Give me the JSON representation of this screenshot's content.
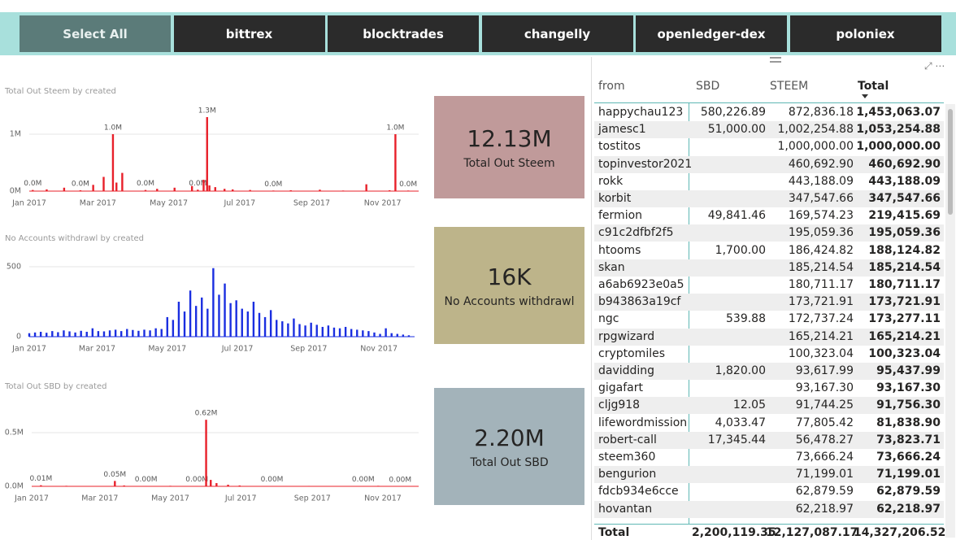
{
  "buttons": [
    "Select All",
    "bittrex",
    "blocktrades",
    "changelly",
    "openledger-dex",
    "poloniex"
  ],
  "chart_data": [
    {
      "type": "bar",
      "title": "Total Out Steem by created",
      "color": "#e8202a",
      "grid": true,
      "x": [
        3,
        15,
        30,
        44,
        55,
        64,
        72,
        75,
        80,
        100,
        110,
        125,
        140,
        145,
        150,
        153,
        155,
        160,
        168,
        175,
        190,
        210,
        225,
        250,
        270,
        290,
        310,
        315,
        326
      ],
      "values": [
        20000,
        30000,
        60000,
        15000,
        110000,
        250000,
        1000000,
        150000,
        320000,
        20000,
        40000,
        60000,
        90000,
        25000,
        200000,
        1300000,
        100000,
        70000,
        40000,
        30000,
        20000,
        10000,
        15000,
        25000,
        10000,
        120000,
        15000,
        1000000,
        10000
      ],
      "value_labels": [
        "0.0M",
        null,
        null,
        "0.0M",
        null,
        null,
        "1.0M",
        null,
        null,
        "0.0M",
        null,
        null,
        null,
        "0.0M",
        null,
        "1.3M",
        null,
        null,
        null,
        null,
        null,
        "0.0M",
        null,
        null,
        null,
        null,
        null,
        "1.0M",
        "0.0M"
      ],
      "xlim": [
        0,
        335
      ],
      "xticks": [
        {
          "value": 0,
          "label": "Jan 2017"
        },
        {
          "value": 59,
          "label": "Mar 2017"
        },
        {
          "value": 120,
          "label": "May 2017"
        },
        {
          "value": 181,
          "label": "Jul 2017"
        },
        {
          "value": 243,
          "label": "Sep 2017"
        },
        {
          "value": 304,
          "label": "Nov 2017"
        }
      ],
      "ylim": [
        0,
        1400000
      ],
      "yticks": [
        {
          "value": 0,
          "label": "0M"
        },
        {
          "value": 1000000,
          "label": "1M"
        }
      ]
    },
    {
      "type": "bar",
      "title": "No Accounts withdrawl by created",
      "color": "#1a2ee0",
      "grid": true,
      "x": [
        0,
        5,
        10,
        15,
        20,
        25,
        30,
        35,
        40,
        45,
        50,
        55,
        60,
        65,
        70,
        75,
        80,
        85,
        90,
        95,
        100,
        105,
        110,
        115,
        120,
        125,
        130,
        135,
        140,
        145,
        150,
        155,
        160,
        165,
        170,
        175,
        180,
        185,
        190,
        195,
        200,
        205,
        210,
        215,
        220,
        225,
        230,
        235,
        240,
        245,
        250,
        255,
        260,
        265,
        270,
        275,
        280,
        285,
        290,
        295,
        300,
        305,
        310,
        315,
        320,
        325,
        330
      ],
      "values": [
        25,
        30,
        35,
        28,
        40,
        32,
        45,
        38,
        30,
        42,
        35,
        60,
        40,
        38,
        45,
        50,
        40,
        55,
        48,
        42,
        50,
        45,
        60,
        55,
        140,
        120,
        250,
        180,
        330,
        220,
        280,
        200,
        490,
        300,
        380,
        240,
        260,
        200,
        180,
        250,
        170,
        140,
        190,
        120,
        110,
        95,
        130,
        90,
        80,
        100,
        85,
        70,
        80,
        65,
        60,
        70,
        55,
        50,
        45,
        40,
        30,
        20,
        60,
        25,
        20,
        15,
        10
      ],
      "xlim": [
        0,
        335
      ],
      "xticks": [
        {
          "value": 0,
          "label": "Jan 2017"
        },
        {
          "value": 59,
          "label": "Mar 2017"
        },
        {
          "value": 120,
          "label": "May 2017"
        },
        {
          "value": 181,
          "label": "Jul 2017"
        },
        {
          "value": 243,
          "label": "Sep 2017"
        },
        {
          "value": 304,
          "label": "Nov 2017"
        }
      ],
      "ylim": [
        0,
        550
      ],
      "yticks": [
        0,
        500
      ]
    },
    {
      "type": "bar",
      "title": "Total Out SBD by created",
      "color": "#e8202a",
      "grid": true,
      "x": [
        8,
        30,
        72,
        80,
        99,
        120,
        143,
        151,
        155,
        160,
        170,
        180,
        208,
        240,
        287,
        300,
        319,
        330
      ],
      "values": [
        10000,
        5000,
        50000,
        8000,
        3000,
        5000,
        2000,
        620000,
        60000,
        30000,
        15000,
        8000,
        3000,
        4000,
        2000,
        5000,
        1000,
        2000
      ],
      "value_labels": [
        "0.01M",
        null,
        "0.05M",
        null,
        "0.00M",
        null,
        "0.00M",
        "0.62M",
        null,
        null,
        null,
        null,
        "0.00M",
        null,
        "0.00M",
        null,
        "0.00M",
        null
      ],
      "xlim": [
        0,
        335
      ],
      "xticks": [
        {
          "value": 0,
          "label": "Jan 2017"
        },
        {
          "value": 59,
          "label": "Mar 2017"
        },
        {
          "value": 120,
          "label": "May 2017"
        },
        {
          "value": 181,
          "label": "Jul 2017"
        },
        {
          "value": 243,
          "label": "Sep 2017"
        },
        {
          "value": 304,
          "label": "Nov 2017"
        }
      ],
      "ylim": [
        0,
        700000
      ],
      "yticks": [
        {
          "value": 0,
          "label": "0.0M"
        },
        {
          "value": 500000,
          "label": "0.5M"
        }
      ]
    }
  ],
  "cards": [
    {
      "value": "12.13M",
      "label": "Total Out Steem",
      "color": "#c09a9a"
    },
    {
      "value": "16K",
      "label": "No Accounts withdrawl",
      "color": "#bdb48a"
    },
    {
      "value": "2.20M",
      "label": "Total Out SBD",
      "color": "#a3b3ba"
    }
  ],
  "table": {
    "columns": [
      "from",
      "SBD",
      "STEEM",
      "Total"
    ],
    "rows": [
      [
        "happychau123",
        "580,226.89",
        "872,836.18",
        "1,453,063.07"
      ],
      [
        "jamesc1",
        "51,000.00",
        "1,002,254.88",
        "1,053,254.88"
      ],
      [
        "tostitos",
        null,
        "1,000,000.00",
        "1,000,000.00"
      ],
      [
        "topinvestor2021",
        null,
        "460,692.90",
        "460,692.90"
      ],
      [
        "rokk",
        null,
        "443,188.09",
        "443,188.09"
      ],
      [
        "korbit",
        null,
        "347,547.66",
        "347,547.66"
      ],
      [
        "fermion",
        "49,841.46",
        "169,574.23",
        "219,415.69"
      ],
      [
        "c91c2dfbf2f5",
        null,
        "195,059.36",
        "195,059.36"
      ],
      [
        "htooms",
        "1,700.00",
        "186,424.82",
        "188,124.82"
      ],
      [
        "skan",
        null,
        "185,214.54",
        "185,214.54"
      ],
      [
        "a6ab6923e0a5",
        null,
        "180,711.17",
        "180,711.17"
      ],
      [
        "b943863a19cf",
        null,
        "173,721.91",
        "173,721.91"
      ],
      [
        "ngc",
        "539.88",
        "172,737.24",
        "173,277.11"
      ],
      [
        "rpgwizard",
        null,
        "165,214.21",
        "165,214.21"
      ],
      [
        "cryptomiles",
        null,
        "100,323.04",
        "100,323.04"
      ],
      [
        "davidding",
        "1,820.00",
        "93,617.99",
        "95,437.99"
      ],
      [
        "gigafart",
        null,
        "93,167.30",
        "93,167.30"
      ],
      [
        "cljg918",
        "12.05",
        "91,744.25",
        "91,756.30"
      ],
      [
        "lifewordmission",
        "4,033.47",
        "77,805.42",
        "81,838.90"
      ],
      [
        "robert-call",
        "17,345.44",
        "56,478.27",
        "73,823.71"
      ],
      [
        "steem360",
        null,
        "73,666.24",
        "73,666.24"
      ],
      [
        "bengurion",
        null,
        "71,199.01",
        "71,199.01"
      ],
      [
        "fdcb934e6cce",
        null,
        "62,879.59",
        "62,879.59"
      ],
      [
        "hovantan",
        null,
        "62,218.97",
        "62,218.97"
      ]
    ],
    "total": [
      "Total",
      "2,200,119.35",
      "12,127,087.17",
      "14,327,206.52"
    ]
  }
}
